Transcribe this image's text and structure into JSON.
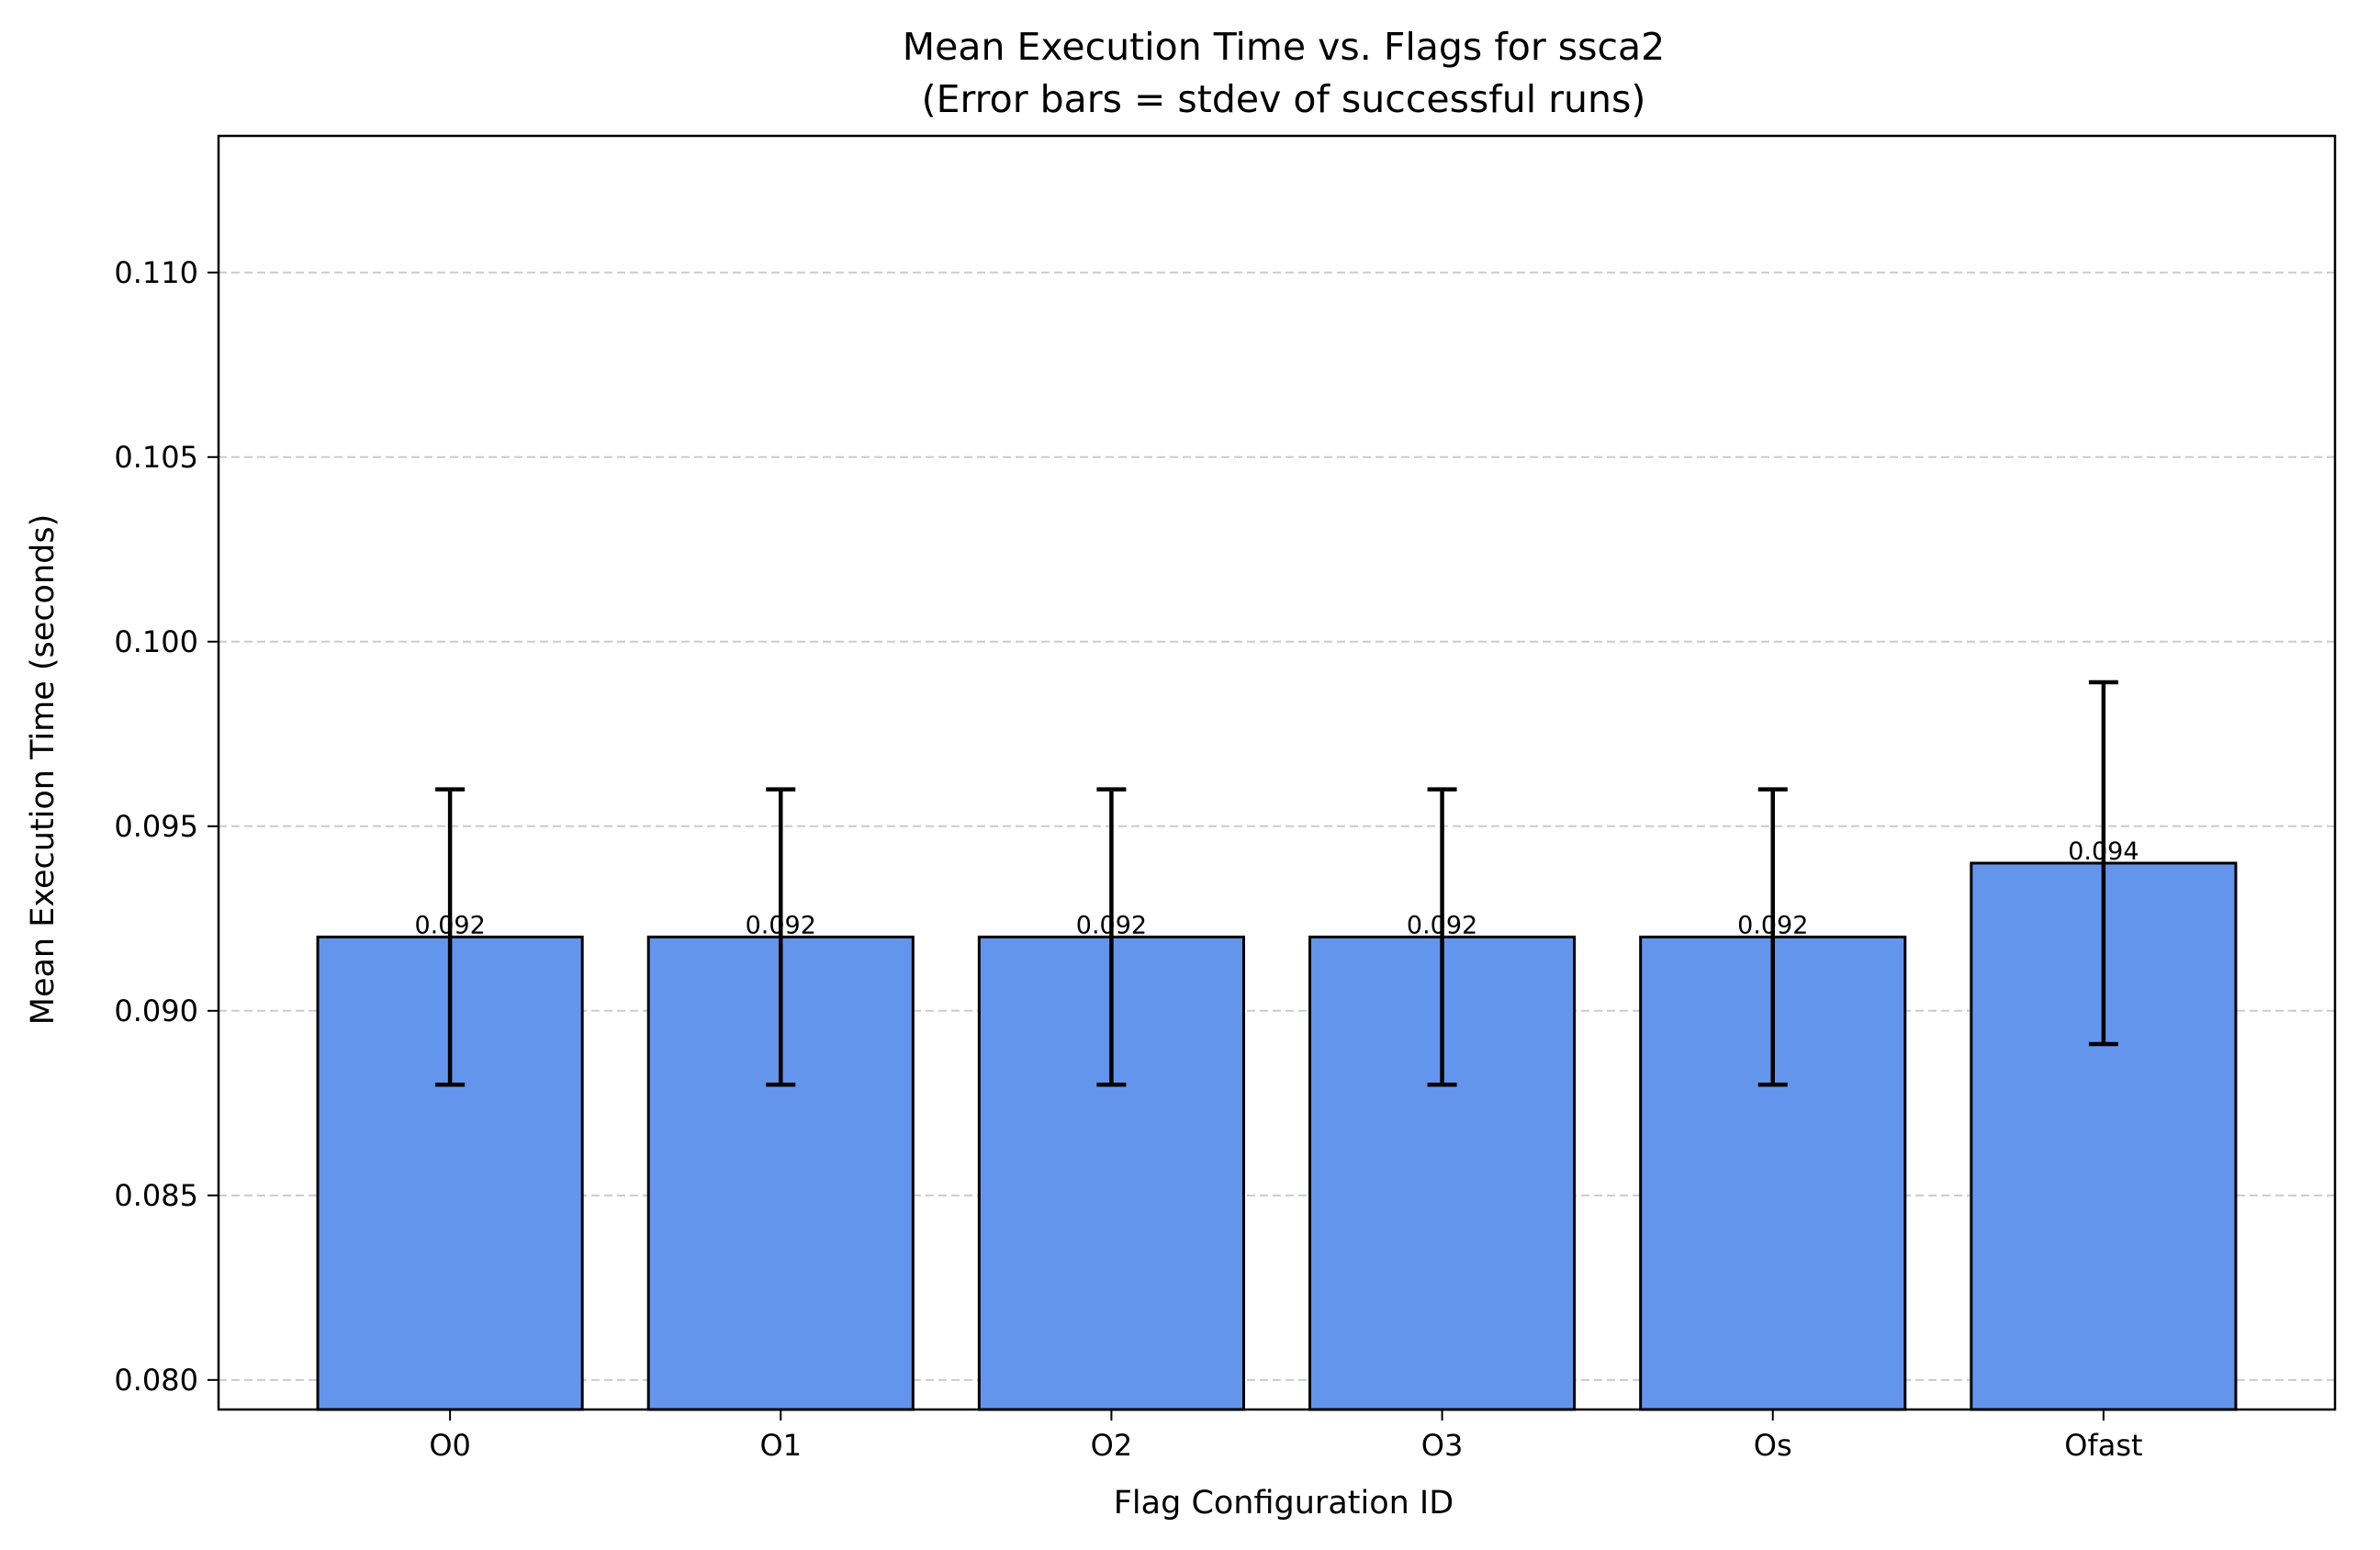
{
  "chart_data": {
    "type": "bar",
    "title": "Mean Execution Time vs. Flags for ssca2",
    "subtitle": "(Error bars = stdev of successful runs)",
    "xlabel": "Flag Configuration ID",
    "ylabel": "Mean Execution Time (seconds)",
    "categories": [
      "O0",
      "O1",
      "O2",
      "O3",
      "Os",
      "Ofast"
    ],
    "values": [
      0.092,
      0.092,
      0.092,
      0.092,
      0.092,
      0.094
    ],
    "errors": [
      0.004,
      0.004,
      0.004,
      0.004,
      0.004,
      0.0049
    ],
    "data_labels": [
      "0.092",
      "0.092",
      "0.092",
      "0.092",
      "0.092",
      "0.094"
    ],
    "ylim": [
      0.0792,
      0.1137
    ],
    "yticks": [
      0.08,
      0.085,
      0.09,
      0.095,
      0.1,
      0.105,
      0.11
    ],
    "ytick_labels": [
      "0.080",
      "0.085",
      "0.090",
      "0.095",
      "0.100",
      "0.105",
      "0.110"
    ],
    "grid": "y-dashed",
    "bar_color": "#6495ED",
    "edge_color": "#000000",
    "grid_color": "#cccccc"
  }
}
